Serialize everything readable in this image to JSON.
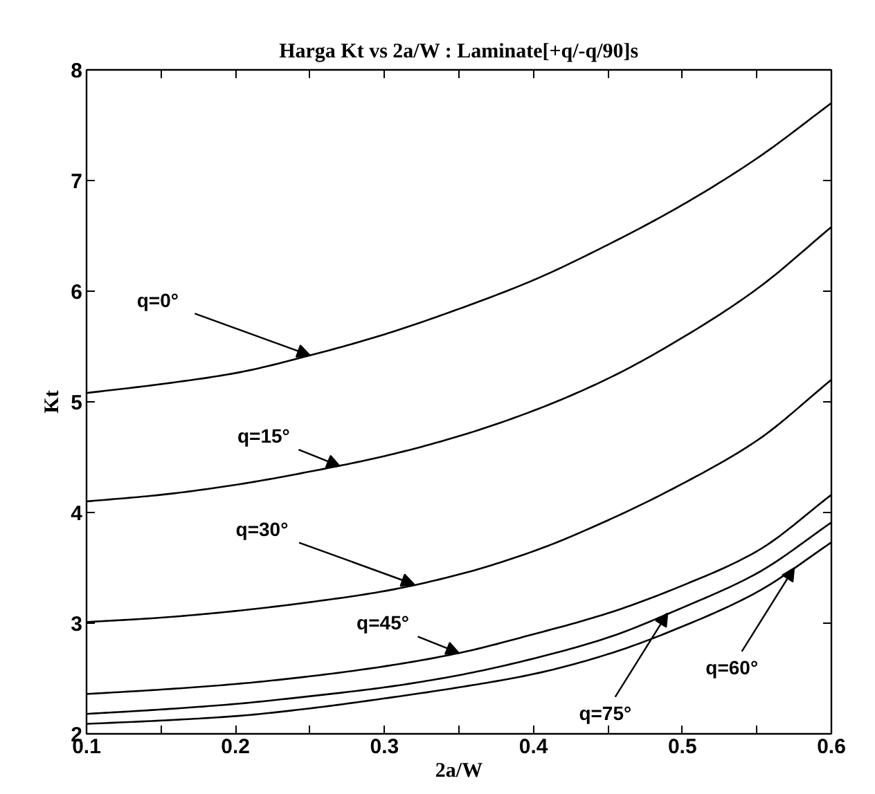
{
  "chart_data": {
    "type": "line",
    "title": "Harga Kt vs 2a/W : Laminate[+q/-q/90]s",
    "xlabel": "2a/W",
    "ylabel": "Kt",
    "x": [
      0.1,
      0.15,
      0.2,
      0.25,
      0.3,
      0.35,
      0.4,
      0.45,
      0.5,
      0.55,
      0.6
    ],
    "series": [
      {
        "color": "#000000",
        "values": [
          5.08,
          5.16,
          5.26,
          5.42,
          5.61,
          5.84,
          6.1,
          6.42,
          6.78,
          7.2,
          7.7
        ]
      },
      {
        "color": "#000000",
        "values": [
          4.1,
          4.16,
          4.25,
          4.37,
          4.51,
          4.69,
          4.92,
          5.21,
          5.58,
          6.02,
          6.58
        ]
      },
      {
        "color": "#000000",
        "values": [
          3.01,
          3.05,
          3.11,
          3.19,
          3.29,
          3.44,
          3.65,
          3.93,
          4.26,
          4.65,
          5.2
        ]
      },
      {
        "color": "#000000",
        "values": [
          2.36,
          2.4,
          2.45,
          2.52,
          2.61,
          2.73,
          2.9,
          3.09,
          3.34,
          3.65,
          4.16
        ]
      },
      {
        "color": "#000000",
        "values": [
          2.18,
          2.22,
          2.27,
          2.34,
          2.42,
          2.53,
          2.68,
          2.87,
          3.14,
          3.45,
          3.91
        ]
      },
      {
        "color": "#000000",
        "values": [
          2.09,
          2.12,
          2.16,
          2.23,
          2.32,
          2.42,
          2.54,
          2.72,
          2.97,
          3.28,
          3.73
        ]
      }
    ],
    "annotations": [
      {
        "text": "q=0°",
        "x": 0.25,
        "y": 5.42
      },
      {
        "text": "q=15°",
        "x": 0.27,
        "y": 4.42
      },
      {
        "text": "q=30°",
        "x": 0.32,
        "y": 3.35
      },
      {
        "text": "q=45°",
        "x": 0.35,
        "y": 2.73
      },
      {
        "text": "q=75°",
        "x": 0.49,
        "y": 3.09
      },
      {
        "text": "q=60°",
        "x": 0.575,
        "y": 3.5
      }
    ],
    "xlim": [
      0.1,
      0.6
    ],
    "ylim": [
      2,
      8
    ],
    "xticks": [
      0.1,
      {
        "value": 0.15,
        "label": null
      },
      0.2,
      {
        "value": 0.25,
        "label": null
      },
      0.3,
      {
        "value": 0.35,
        "label": null
      },
      0.4,
      {
        "value": 0.45,
        "label": null
      },
      0.5,
      {
        "value": 0.55,
        "label": null
      },
      0.6
    ],
    "yticks": [
      2,
      3,
      4,
      5,
      6,
      7,
      8
    ],
    "grid": false
  }
}
